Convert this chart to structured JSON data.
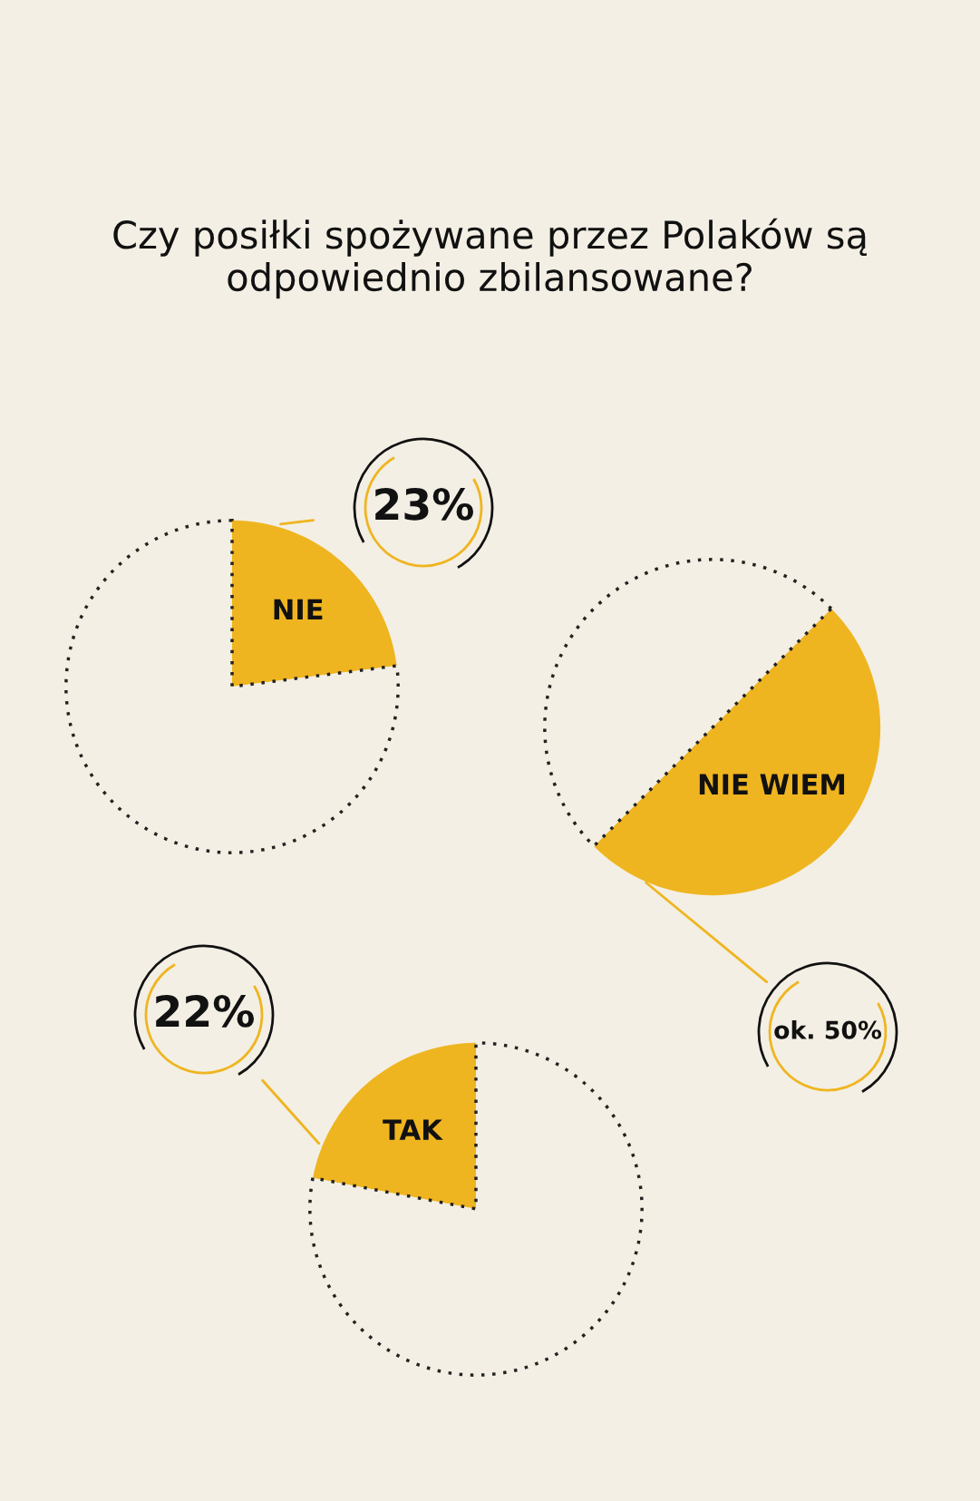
{
  "chart_data": [
    {
      "type": "pie",
      "title": "Czy posiłki spożywane przez Polaków są odpowiednio zbilansowane?",
      "categories": [
        "NIE",
        null
      ],
      "values": [
        23,
        77
      ],
      "colors": [
        "#efb520",
        "#f3efe4"
      ],
      "value_labels": [
        "23%",
        null
      ]
    },
    {
      "type": "pie",
      "categories": [
        "NIE WIEM",
        null
      ],
      "values": [
        50,
        50
      ],
      "colors": [
        "#efb520",
        "#f3efe4"
      ],
      "value_labels": [
        "ok. 50%",
        null
      ]
    },
    {
      "type": "pie",
      "categories": [
        "TAK",
        null
      ],
      "values": [
        22,
        78
      ],
      "colors": [
        "#efb520",
        "#f3efe4"
      ],
      "value_labels": [
        "22%",
        null
      ]
    }
  ]
}
